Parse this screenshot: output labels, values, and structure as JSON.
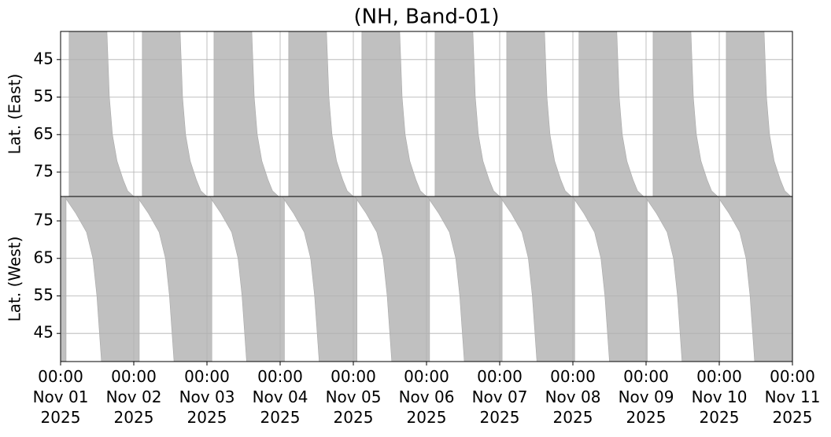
{
  "chart_data": {
    "type": "band",
    "title": "(NH, Band-01)",
    "grid": true,
    "xlim": [
      0,
      240
    ],
    "xticks": [
      {
        "value": 0,
        "label": "00:00\nNov 01\n2025"
      },
      {
        "value": 24,
        "label": "00:00\nNov 02\n2025"
      },
      {
        "value": 48,
        "label": "00:00\nNov 03\n2025"
      },
      {
        "value": 72,
        "label": "00:00\nNov 04\n2025"
      },
      {
        "value": 96,
        "label": "00:00\nNov 05\n2025"
      },
      {
        "value": 120,
        "label": "00:00\nNov 06\n2025"
      },
      {
        "value": 144,
        "label": "00:00\nNov 07\n2025"
      },
      {
        "value": 168,
        "label": "00:00\nNov 08\n2025"
      },
      {
        "value": 192,
        "label": "00:00\nNov 09\n2025"
      },
      {
        "value": 216,
        "label": "00:00\nNov 10\n2025"
      },
      {
        "value": 240,
        "label": "00:00\nNov 11\n2025"
      }
    ],
    "panels": [
      {
        "ylabel": "Lat. (East)",
        "ylim": [
          81.5,
          37.5
        ],
        "yticks": [
          45,
          55,
          65,
          75
        ],
        "color": "#c0c0c0",
        "lat": [
          37.5,
          55,
          65,
          72,
          77,
          80,
          81.5
        ],
        "regions": [
          {
            "start": 2.8,
            "end": [
              15.2,
              16,
              17,
              18.5,
              20.5,
              22,
              24
            ]
          },
          {
            "start": 26.8,
            "end": [
              39.2,
              40,
              41,
              42.5,
              44.5,
              46,
              48
            ]
          },
          {
            "start": 50.3,
            "end": [
              62.7,
              63.5,
              64.5,
              66,
              68,
              69.5,
              71.5
            ]
          },
          {
            "start": 74.8,
            "end": [
              87.2,
              88,
              89,
              90.5,
              92.5,
              94,
              96
            ]
          },
          {
            "start": 98.8,
            "end": [
              111.2,
              112,
              113,
              114.5,
              116.5,
              118,
              120
            ]
          },
          {
            "start": 122.8,
            "end": [
              135.2,
              136,
              137,
              138.5,
              140.5,
              142,
              144
            ]
          },
          {
            "start": 146.3,
            "end": [
              158.7,
              159.5,
              160.5,
              162,
              164,
              165.5,
              167.5
            ]
          },
          {
            "start": 170,
            "end": [
              182.4,
              183.2,
              184.2,
              185.7,
              187.7,
              189.2,
              191.2
            ]
          },
          {
            "start": 194.3,
            "end": [
              206.7,
              207.5,
              208.5,
              210,
              212,
              213.5,
              215.5
            ]
          },
          {
            "start": 218.3,
            "end": [
              230.7,
              231.5,
              232.5,
              234,
              236,
              237.5,
              239.5
            ]
          }
        ]
      },
      {
        "ylabel": "Lat. (West)",
        "ylim": [
          37.5,
          81.5
        ],
        "yticks": [
          45,
          55,
          65,
          75
        ],
        "color": "#c0c0c0",
        "lat": [
          37.5,
          55,
          65,
          72,
          77,
          80,
          81.5
        ],
        "regions": [
          {
            "start": [
              0,
              0,
              0,
              0,
              0,
              0,
              0
            ],
            "end": 1.8
          },
          {
            "start": [
              13.4,
              11.9,
              10.6,
              8.5,
              5,
              2.5,
              1.3
            ],
            "end": 25.8
          },
          {
            "start": [
              37.2,
              35.7,
              34.4,
              32.3,
              28.8,
              26.3,
              25.1
            ],
            "end": 49.6
          },
          {
            "start": [
              61,
              59.5,
              58.2,
              56.1,
              52.6,
              50.1,
              48.9
            ],
            "end": 73.4
          },
          {
            "start": [
              84.8,
              83.3,
              82,
              79.9,
              76.4,
              73.9,
              72.7
            ],
            "end": 97.2
          },
          {
            "start": [
              108.6,
              107.1,
              105.8,
              103.7,
              100.2,
              97.7,
              96.5
            ],
            "end": 121
          },
          {
            "start": [
              132.4,
              130.9,
              129.6,
              127.5,
              124,
              121.5,
              120.3
            ],
            "end": 144.8
          },
          {
            "start": [
              156.2,
              154.7,
              153.4,
              151.3,
              147.8,
              145.3,
              144.1
            ],
            "end": 168.6
          },
          {
            "start": [
              180,
              178.5,
              177.2,
              175.1,
              171.6,
              169.1,
              167.9
            ],
            "end": 192.4
          },
          {
            "start": [
              203.8,
              202.3,
              201,
              198.9,
              195.4,
              192.9,
              191.7
            ],
            "end": 216.2
          },
          {
            "start": [
              227.6,
              226.1,
              224.8,
              222.7,
              219.2,
              216.7,
              215.5
            ],
            "end": 240
          }
        ]
      }
    ]
  }
}
